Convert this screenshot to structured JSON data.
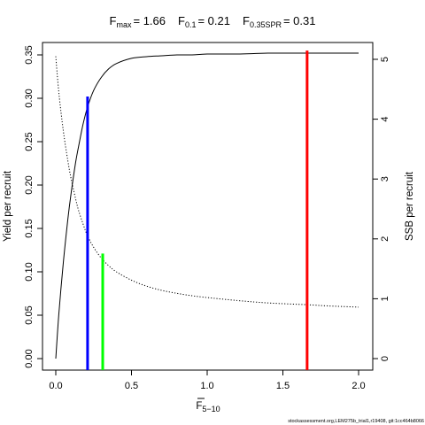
{
  "chart_data": {
    "type": "line",
    "title": {
      "fmax_label": "F",
      "fmax_sub": "max",
      "fmax_value": "= 1.66",
      "f01_label": "F",
      "f01_sub": "0.1",
      "f01_value": "= 0.21",
      "fspr_label": "F",
      "fspr_sub": "0.35SPR",
      "fspr_value": "= 0.31"
    },
    "xlabel": "F",
    "xlabel_sub": "5−10",
    "ylabel": "Yield per recruit",
    "y2label": "SSB per recruit",
    "xlim": [
      0,
      2.0
    ],
    "ylim": [
      0,
      0.35
    ],
    "y2lim": [
      0,
      5
    ],
    "x_ticks": [
      0.0,
      0.5,
      1.0,
      1.5,
      2.0
    ],
    "x_tick_labels": [
      "0.0",
      "0.5",
      "1.0",
      "1.5",
      "2.0"
    ],
    "y_ticks": [
      0.0,
      0.05,
      0.1,
      0.15,
      0.2,
      0.25,
      0.3,
      0.35
    ],
    "y_tick_labels": [
      "0.00",
      "0.05",
      "0.10",
      "0.15",
      "0.20",
      "0.25",
      "0.30",
      "0.35"
    ],
    "y2_ticks": [
      0,
      1,
      2,
      3,
      4,
      5
    ],
    "y2_tick_labels": [
      "0",
      "1",
      "2",
      "3",
      "4",
      "5"
    ],
    "grid": false,
    "series": [
      {
        "kind": "yield",
        "axis": "left",
        "style": "solid",
        "color": "#000000",
        "x": [
          0.0,
          0.02,
          0.05,
          0.08,
          0.1,
          0.13,
          0.15,
          0.18,
          0.21,
          0.25,
          0.3,
          0.35,
          0.4,
          0.5,
          0.6,
          0.7,
          0.8,
          0.9,
          1.0,
          1.2,
          1.4,
          1.66,
          1.8,
          2.0
        ],
        "y": [
          0.0,
          0.051,
          0.111,
          0.161,
          0.189,
          0.225,
          0.244,
          0.27,
          0.29,
          0.309,
          0.324,
          0.334,
          0.34,
          0.346,
          0.348,
          0.349,
          0.35,
          0.35,
          0.351,
          0.351,
          0.352,
          0.352,
          0.352,
          0.352
        ]
      },
      {
        "kind": "ssb",
        "axis": "right",
        "style": "dotted",
        "color": "#000000",
        "x": [
          0.0,
          0.02,
          0.05,
          0.08,
          0.1,
          0.13,
          0.15,
          0.18,
          0.21,
          0.25,
          0.3,
          0.35,
          0.4,
          0.5,
          0.6,
          0.7,
          0.8,
          0.9,
          1.0,
          1.2,
          1.4,
          1.66,
          1.8,
          2.0
        ],
        "y": [
          5.05,
          4.45,
          3.8,
          3.3,
          3.02,
          2.68,
          2.48,
          2.25,
          2.05,
          1.86,
          1.68,
          1.55,
          1.45,
          1.31,
          1.21,
          1.14,
          1.09,
          1.05,
          1.02,
          0.97,
          0.93,
          0.9,
          0.88,
          0.86
        ]
      }
    ],
    "reference_lines": [
      {
        "name": "Fmax",
        "x": 1.66,
        "y_top": 0.355,
        "color": "#ff0000"
      },
      {
        "name": "F0.1",
        "x": 0.21,
        "y_top": 0.302,
        "color": "#0000ff"
      },
      {
        "name": "F0.35SPR",
        "x": 0.31,
        "y_top": 0.121,
        "color": "#00ff00"
      }
    ]
  },
  "footnote": "stockassessment.org,LEM275b_trial1,r19408, git:1cc464b8066"
}
